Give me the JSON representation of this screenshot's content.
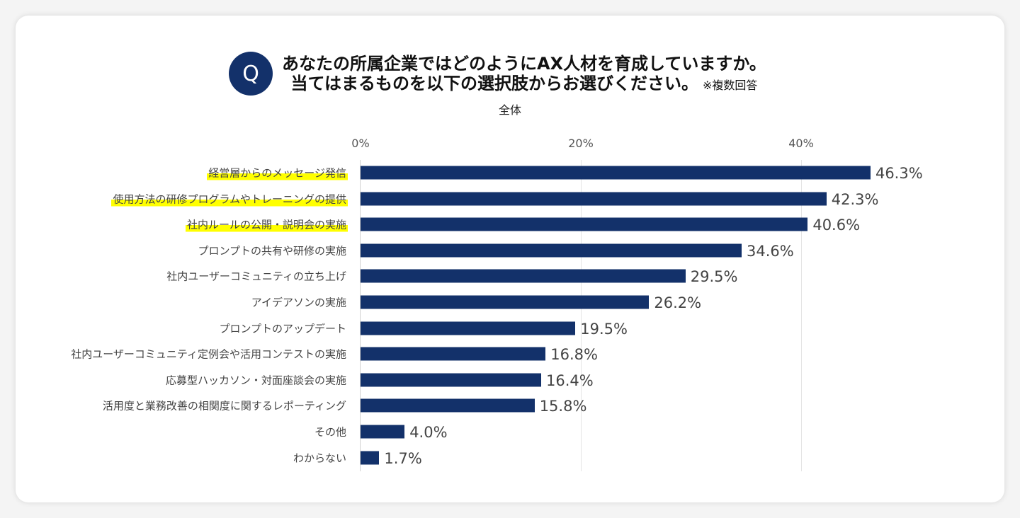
{
  "header": {
    "badge": "Q",
    "title_line1": "あなたの所属企業ではどのようにAX人材を育成していますか。",
    "title_line2": "当てはまるものを以下の選択肢からお選びください。",
    "note": "※複数回答"
  },
  "highlight_color": "#ffff00",
  "bar_color": "#13316a",
  "chart_data": {
    "type": "bar",
    "orientation": "horizontal",
    "title": "全体",
    "xlabel": "",
    "ylabel": "",
    "xlim": [
      0,
      50
    ],
    "ticks": [
      0,
      20,
      40
    ],
    "tick_labels": [
      "0%",
      "20%",
      "40%"
    ],
    "grid": true,
    "categories": [
      "経営層からのメッセージ発信",
      "使用方法の研修プログラムやトレーニングの提供",
      "社内ルールの公開・説明会の実施",
      "プロンプトの共有や研修の実施",
      "社内ユーザーコミュニティの立ち上げ",
      "アイデアソンの実施",
      "プロンプトのアップデート",
      "社内ユーザーコミュニティ定例会や活用コンテストの実施",
      "応募型ハッカソン・対面座談会の実施",
      "活用度と業務改善の相関度に関するレポーティング",
      "その他",
      "わからない"
    ],
    "highlighted": [
      true,
      true,
      true,
      false,
      false,
      false,
      false,
      false,
      false,
      false,
      false,
      false
    ],
    "values": [
      46.3,
      42.3,
      40.6,
      34.6,
      29.5,
      26.2,
      19.5,
      16.8,
      16.4,
      15.8,
      4.0,
      1.7
    ],
    "value_labels": [
      "46.3%",
      "42.3%",
      "40.6%",
      "34.6%",
      "29.5%",
      "26.2%",
      "19.5%",
      "16.8%",
      "16.4%",
      "15.8%",
      "4.0%",
      "1.7%"
    ]
  }
}
